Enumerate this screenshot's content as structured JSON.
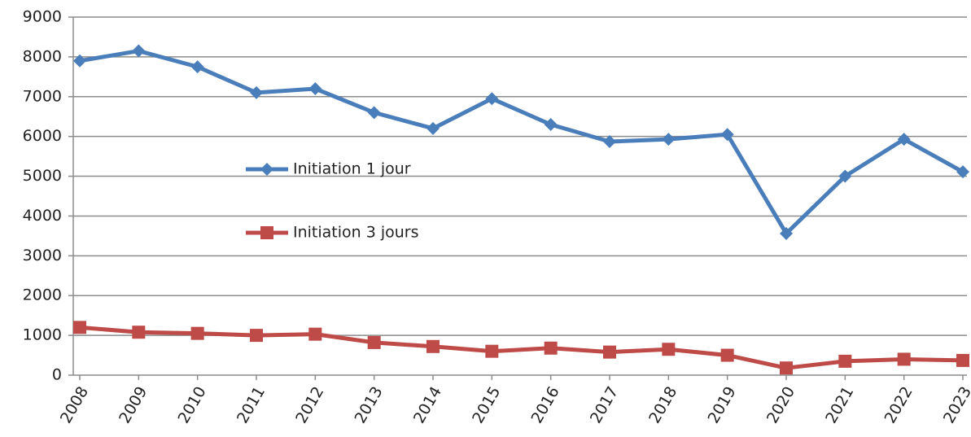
{
  "chart_data": {
    "type": "line",
    "categories": [
      "2008",
      "2009",
      "2010",
      "2011",
      "2012",
      "2013",
      "2014",
      "2015",
      "2016",
      "2017",
      "2018",
      "2019",
      "2020",
      "2021",
      "2022",
      "2023"
    ],
    "series": [
      {
        "name": "Initiation 1 jour",
        "color": "#4a7ebb",
        "marker": "diamond",
        "values": [
          7900,
          8150,
          7750,
          7100,
          7200,
          6600,
          6200,
          6950,
          6300,
          5870,
          5930,
          6050,
          3560,
          5000,
          5930,
          5110
        ]
      },
      {
        "name": "Initiation 3 jours",
        "color": "#be4b48",
        "marker": "square",
        "values": [
          1200,
          1080,
          1050,
          1000,
          1030,
          820,
          720,
          600,
          680,
          580,
          650,
          500,
          180,
          350,
          400,
          370
        ]
      }
    ],
    "ylim": [
      0,
      9000
    ],
    "yticks": [
      0,
      1000,
      2000,
      3000,
      4000,
      5000,
      6000,
      7000,
      8000,
      9000
    ],
    "grid": true,
    "legend": "center-left"
  }
}
